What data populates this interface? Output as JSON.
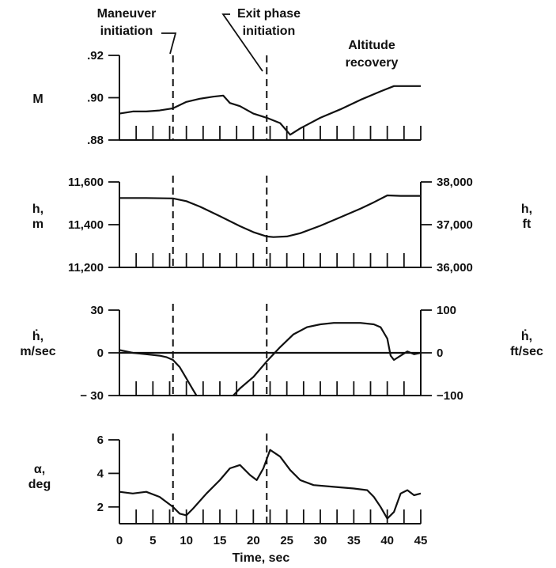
{
  "chart_data": {
    "type": "line",
    "xlabel": "Time, sec",
    "xlim": [
      0,
      45
    ],
    "x_ticks": [
      "0",
      "5",
      "10",
      "15",
      "20",
      "25",
      "30",
      "35",
      "40",
      "45"
    ],
    "annotations": [
      {
        "id": "maneuver",
        "lines": [
          "Maneuver",
          "initiation"
        ],
        "x": 8
      },
      {
        "id": "exit",
        "lines": [
          "Exit phase",
          "initiation"
        ],
        "x": 22
      },
      {
        "id": "recovery",
        "lines": [
          "Altitude",
          "recovery"
        ]
      }
    ],
    "panels": [
      {
        "id": "mach",
        "ylabel_lines": [
          "M"
        ],
        "ylim": [
          0.88,
          0.92
        ],
        "yticks": [
          {
            "value": 0.88,
            "label": ".88"
          },
          {
            "value": 0.9,
            "label": ".90"
          },
          {
            "value": 0.92,
            "label": ".92"
          }
        ],
        "series": [
          {
            "x": [
              0,
              2,
              4,
              6,
              8,
              10,
              12,
              14,
              15.5,
              16.5,
              18,
              20,
              22,
              24,
              25.5,
              27,
              30,
              33,
              36,
              39,
              41,
              45
            ],
            "y": [
              0.8925,
              0.8935,
              0.8935,
              0.894,
              0.895,
              0.898,
              0.8995,
              0.9005,
              0.901,
              0.8975,
              0.896,
              0.8925,
              0.8905,
              0.888,
              0.8825,
              0.8855,
              0.8905,
              0.8945,
              0.899,
              0.903,
              0.9055,
              0.9055
            ]
          }
        ]
      },
      {
        "id": "altitude",
        "ylabel_lines": [
          "h,",
          "m"
        ],
        "ylim": [
          11200,
          11600
        ],
        "yticks": [
          {
            "value": 11200,
            "label": "11,200"
          },
          {
            "value": 11400,
            "label": "11,400"
          },
          {
            "value": 11600,
            "label": "11,600"
          }
        ],
        "right_ylabel_lines": [
          "h,",
          "ft"
        ],
        "right_ylim": [
          36000,
          38000
        ],
        "right_yticks": [
          {
            "value": 36000,
            "label": "36,000"
          },
          {
            "value": 37000,
            "label": "37,000"
          },
          {
            "value": 38000,
            "label": "38,000"
          }
        ],
        "series": [
          {
            "x": [
              0,
              4,
              8,
              10,
              12,
              15,
              18,
              20,
              22,
              23,
              25,
              27,
              30,
              33,
              36,
              38,
              40,
              42,
              45
            ],
            "y": [
              11525,
              11525,
              11523,
              11510,
              11485,
              11440,
              11393,
              11365,
              11345,
              11342,
              11345,
              11360,
              11395,
              11435,
              11475,
              11505,
              11537,
              11535,
              11535
            ]
          }
        ]
      },
      {
        "id": "rate",
        "ylabel_lines": [
          "ḣ,",
          "m/sec"
        ],
        "ylim": [
          -30,
          30
        ],
        "yticks": [
          {
            "value": -30,
            "label": "− 30"
          },
          {
            "value": 0,
            "label": "0"
          },
          {
            "value": 30,
            "label": "30"
          }
        ],
        "right_ylabel_lines": [
          "ḣ,",
          "ft/sec"
        ],
        "right_ylim": [
          -100,
          100
        ],
        "right_yticks": [
          {
            "value": -100,
            "label": "−100"
          },
          {
            "value": 0,
            "label": "0"
          },
          {
            "value": 100,
            "label": "100"
          }
        ],
        "series": [
          {
            "x": [
              0,
              2,
              4,
              6,
              7,
              8,
              9,
              10,
              11,
              11.5
            ],
            "y": [
              2,
              0,
              -1,
              -2,
              -3,
              -5,
              -10,
              -18,
              -26,
              -30
            ]
          },
          {
            "x": [
              17,
              18,
              20,
              22,
              24,
              26,
              28,
              30,
              32,
              34,
              36,
              38,
              39,
              40,
              40.5,
              41,
              42,
              43,
              44,
              45
            ],
            "y": [
              -30,
              -25,
              -17,
              -6,
              4,
              13,
              18,
              20,
              21,
              21,
              21,
              20,
              18,
              10,
              -2,
              -5,
              -2,
              1,
              -1,
              0
            ]
          }
        ]
      },
      {
        "id": "alpha",
        "ylabel_lines": [
          "α,",
          "deg"
        ],
        "ylim": [
          1,
          6
        ],
        "yticks": [
          {
            "value": 2,
            "label": "2"
          },
          {
            "value": 4,
            "label": "4"
          },
          {
            "value": 6,
            "label": "6"
          }
        ],
        "series": [
          {
            "x": [
              0,
              2,
              4,
              6,
              8,
              9,
              10,
              11,
              13,
              15,
              16.5,
              18,
              19.5,
              20.5,
              21.5,
              22.5,
              24,
              25.5,
              27,
              29,
              32,
              35,
              37,
              38,
              39,
              40,
              41,
              42,
              43,
              44,
              45
            ],
            "y": [
              2.9,
              2.8,
              2.9,
              2.6,
              2.0,
              1.6,
              1.5,
              1.9,
              2.8,
              3.6,
              4.3,
              4.5,
              3.9,
              3.6,
              4.3,
              5.4,
              5.0,
              4.2,
              3.6,
              3.3,
              3.2,
              3.1,
              3.0,
              2.6,
              2.0,
              1.3,
              1.7,
              2.8,
              3.0,
              2.7,
              2.8
            ]
          }
        ]
      }
    ]
  }
}
